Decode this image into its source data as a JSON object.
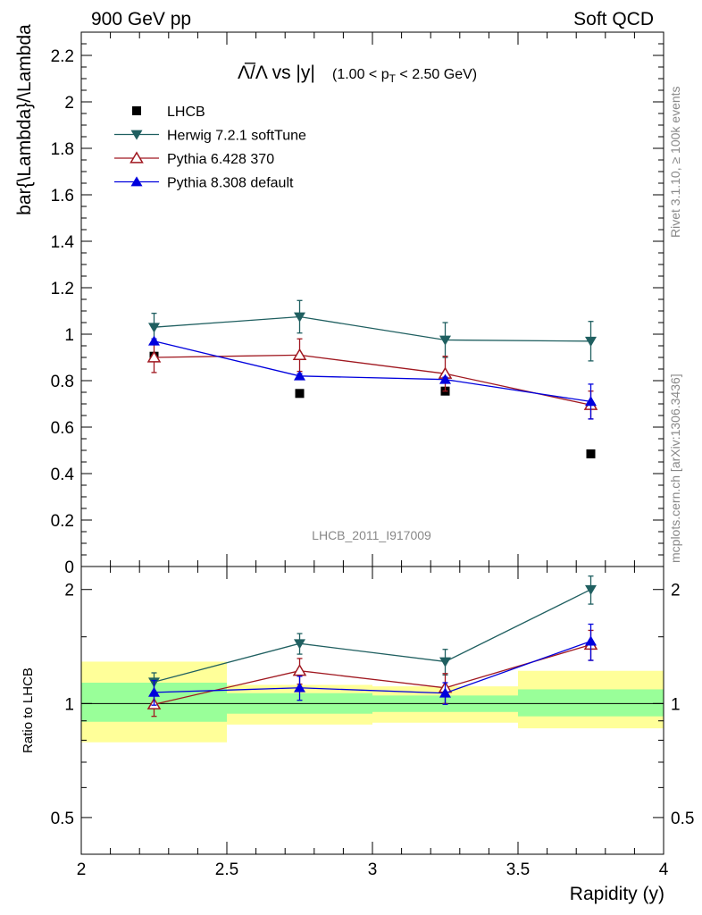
{
  "header": {
    "left": "900 GeV pp",
    "right": "Soft QCD"
  },
  "side_text": {
    "rivet": "Rivet 3.1.10, ≥ 100k events",
    "mcplots": "mcplots.cern.ch [arXiv:1306.3436]"
  },
  "analysis_label": "LHCB_2011_I917009",
  "chart_data": [
    {
      "type": "scatter",
      "title_main": "Λ̅/Λ vs |y|",
      "title_sub": "(1.00 < p_T < 2.50 GeV)",
      "ylabel": "bar{\\Lambda}/\\Lambda",
      "xlim": [
        2,
        4
      ],
      "ylim": [
        0,
        2.3
      ],
      "y_ticks": [
        "0",
        "0.2",
        "0.4",
        "0.6",
        "0.8",
        "1",
        "1.2",
        "1.4",
        "1.6",
        "1.8",
        "2",
        "2.2"
      ],
      "legend_position": "top-left",
      "series": [
        {
          "name": "LHCB",
          "color": "#000000",
          "marker": "square",
          "x": [
            2.25,
            2.75,
            3.25,
            3.75
          ],
          "y": [
            0.905,
            0.745,
            0.755,
            0.485
          ],
          "err": [
            0.01,
            0.008,
            0.01,
            0.008
          ]
        },
        {
          "name": "Herwig 7.2.1 softTune",
          "color": "#1f5f60",
          "marker": "triangle-down",
          "x": [
            2.25,
            2.75,
            3.25,
            3.75
          ],
          "y": [
            1.03,
            1.075,
            0.975,
            0.97
          ],
          "err": [
            0.06,
            0.07,
            0.075,
            0.085
          ]
        },
        {
          "name": "Pythia 6.428 370",
          "color": "#a01820",
          "marker": "triangle-up-open",
          "x": [
            2.25,
            2.75,
            3.25,
            3.75
          ],
          "y": [
            0.9,
            0.91,
            0.83,
            0.695
          ],
          "err": [
            0.065,
            0.07,
            0.075,
            0.06
          ]
        },
        {
          "name": "Pythia 8.308 default",
          "color": "#0000dd",
          "marker": "triangle-up",
          "x": [
            2.25,
            2.75,
            3.25,
            3.75
          ],
          "y": [
            0.97,
            0.82,
            0.805,
            0.71
          ],
          "err": [
            0.01,
            0.01,
            0.01,
            0.075
          ]
        }
      ]
    },
    {
      "type": "scatter",
      "ylabel": "Ratio to LHCB",
      "xlabel": "Rapidity (y)",
      "xlim": [
        2,
        4
      ],
      "ylim": [
        0.4,
        2.3
      ],
      "y_scale": "log",
      "reference_line": 1,
      "x_ticks": [
        "2",
        "2.5",
        "3",
        "3.5",
        "4"
      ],
      "y_ticks": [
        "0.5",
        "1",
        "2"
      ],
      "bands": [
        {
          "x0": 2.0,
          "x1": 2.5,
          "yellow": [
            0.79,
            1.29
          ],
          "green": [
            0.895,
            1.135
          ]
        },
        {
          "x0": 2.5,
          "x1": 3.0,
          "yellow": [
            0.88,
            1.12
          ],
          "green": [
            0.94,
            1.065
          ]
        },
        {
          "x0": 3.0,
          "x1": 3.5,
          "yellow": [
            0.89,
            1.11
          ],
          "green": [
            0.95,
            1.05
          ]
        },
        {
          "x0": 3.5,
          "x1": 4.0,
          "yellow": [
            0.86,
            1.22
          ],
          "green": [
            0.925,
            1.09
          ]
        }
      ],
      "series": [
        {
          "name": "Herwig 7.2.1 softTune",
          "color": "#1f5f60",
          "marker": "triangle-down",
          "x": [
            2.25,
            2.75,
            3.25,
            3.75
          ],
          "y": [
            1.14,
            1.44,
            1.29,
            2.0
          ],
          "err": [
            0.065,
            0.09,
            0.1,
            0.17
          ]
        },
        {
          "name": "Pythia 6.428 370",
          "color": "#a01820",
          "marker": "triangle-up-open",
          "x": [
            2.25,
            2.75,
            3.25,
            3.75
          ],
          "y": [
            0.995,
            1.22,
            1.1,
            1.43
          ],
          "err": [
            0.07,
            0.095,
            0.1,
            0.13
          ]
        },
        {
          "name": "Pythia 8.308 default",
          "color": "#0000dd",
          "marker": "triangle-up",
          "x": [
            2.25,
            2.75,
            3.25,
            3.75
          ],
          "y": [
            1.07,
            1.1,
            1.065,
            1.46
          ],
          "err": [
            0.08,
            0.08,
            0.07,
            0.16
          ]
        }
      ]
    }
  ]
}
